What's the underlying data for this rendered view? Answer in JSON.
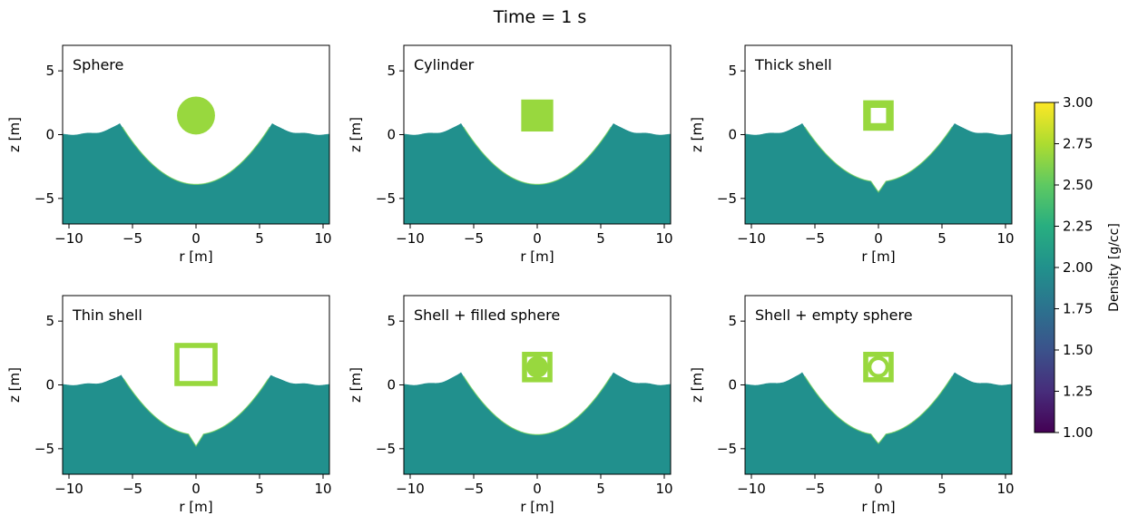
{
  "figure": {
    "suptitle": "Time = 1 s"
  },
  "colors": {
    "ground": "#21908d",
    "rim": "#6ccd5a",
    "projectile": "#98d83e",
    "frame": "#000000"
  },
  "chart_data": {
    "type": "heatmap",
    "subplots": [
      {
        "label": "Sphere",
        "projectile": {
          "shape": "circle",
          "r": 0,
          "z": 1.5,
          "radius": 1.3
        },
        "crater": {
          "depth": 3.9,
          "rim_radius": 6.0,
          "rim_height": 0.9,
          "central_spike": 0
        }
      },
      {
        "label": "Cylinder",
        "projectile": {
          "shape": "square",
          "r": 0,
          "z": 1.5,
          "half_width": 1.2
        },
        "crater": {
          "depth": 3.9,
          "rim_radius": 6.0,
          "rim_height": 0.9,
          "central_spike": 0
        }
      },
      {
        "label": "Thick shell",
        "projectile": {
          "shape": "square-ring",
          "r": 0,
          "z": 1.5,
          "half_width": 1.2,
          "thickness": 0.6
        },
        "crater": {
          "depth": 3.7,
          "rim_radius": 6.0,
          "rim_height": 0.9,
          "central_spike": 0.8
        }
      },
      {
        "label": "Thin shell",
        "projectile": {
          "shape": "square-ring",
          "r": 0,
          "z": 1.6,
          "half_width": 1.7,
          "thickness": 0.4
        },
        "crater": {
          "depth": 3.9,
          "rim_radius": 5.9,
          "rim_height": 0.8,
          "central_spike": 0.9
        }
      },
      {
        "label": "Shell + filled sphere",
        "projectile": {
          "shape": "square-ring-filled-circle",
          "r": 0,
          "z": 1.4,
          "half_width": 1.2,
          "thickness": 0.4,
          "inner_radius": 0.85
        },
        "crater": {
          "depth": 3.9,
          "rim_radius": 6.0,
          "rim_height": 1.0,
          "central_spike": 0
        }
      },
      {
        "label": "Shell + empty sphere",
        "projectile": {
          "shape": "square-ring-ring",
          "r": 0,
          "z": 1.4,
          "half_width": 1.2,
          "thickness": 0.4,
          "inner_radius": 0.85,
          "inner_thickness": 0.3
        },
        "crater": {
          "depth": 3.9,
          "rim_radius": 6.0,
          "rim_height": 1.0,
          "central_spike": 0.7
        }
      }
    ],
    "xlabel": "r [m]",
    "ylabel": "z [m]",
    "xlim": [
      -10.5,
      10.5
    ],
    "ylim": [
      -7,
      7
    ],
    "xticks": [
      -10,
      -5,
      0,
      5,
      10
    ],
    "yticks": [
      -5,
      0,
      5
    ],
    "xtick_labels": [
      "−10",
      "−5",
      "0",
      "5",
      "10"
    ],
    "ytick_labels": [
      "−5",
      "0",
      "5"
    ],
    "colorbar": {
      "label": "Density [g/cc]",
      "range": [
        1.0,
        3.0
      ],
      "ticks": [
        1.0,
        1.25,
        1.5,
        1.75,
        2.0,
        2.25,
        2.5,
        2.75,
        3.0
      ],
      "tick_labels": [
        "1.00",
        "1.25",
        "1.50",
        "1.75",
        "2.00",
        "2.25",
        "2.50",
        "2.75",
        "3.00"
      ],
      "colormap": "viridis"
    }
  }
}
